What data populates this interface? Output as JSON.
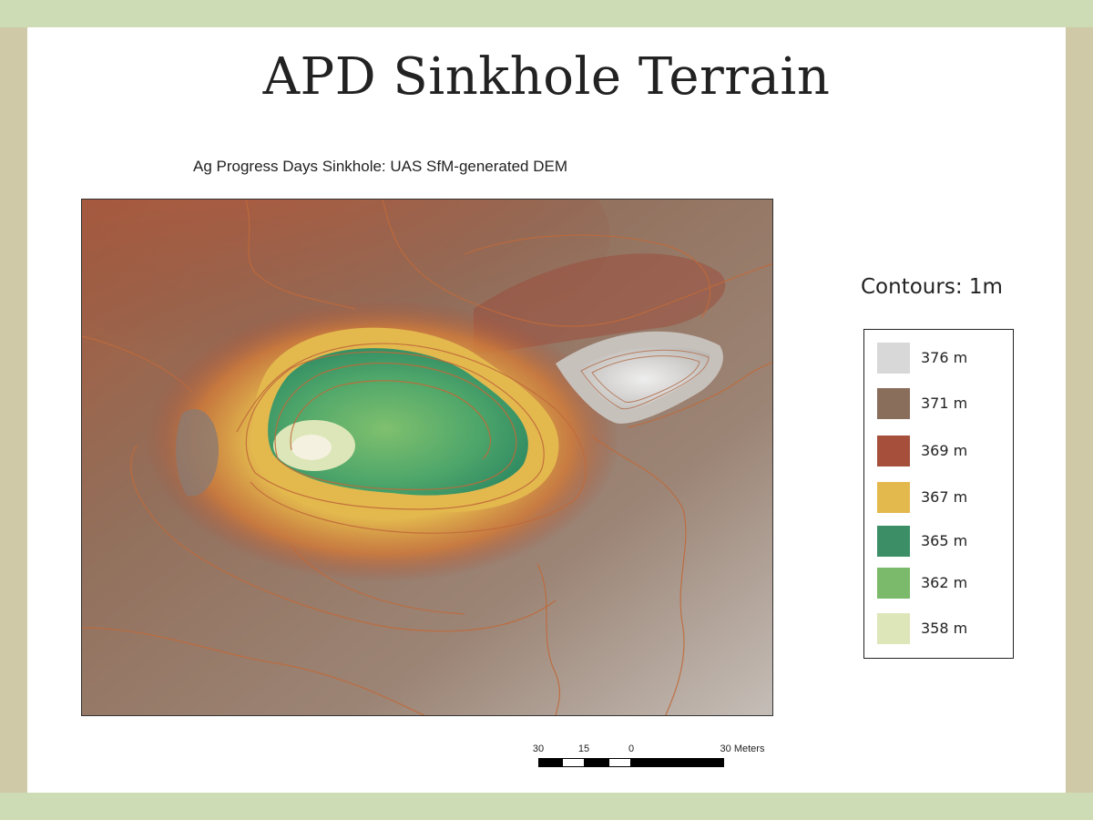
{
  "slide": {
    "title": "APD Sinkhole Terrain",
    "background_color": "#cddcb4",
    "side_color": "#cfc9a8"
  },
  "map": {
    "title": "Ag Progress Days Sinkhole: UAS SfM-generated DEM"
  },
  "legend": {
    "title": "Contours: 1m",
    "items": [
      {
        "label": "376 m",
        "color": "#d8d8d8"
      },
      {
        "label": "371 m",
        "color": "#8a6e5c"
      },
      {
        "label": "369 m",
        "color": "#a6503c"
      },
      {
        "label": "367 m",
        "color": "#e3b94e"
      },
      {
        "label": "365 m",
        "color": "#3b8e66"
      },
      {
        "label": "362 m",
        "color": "#7aba6a"
      },
      {
        "label": "358 m",
        "color": "#dde6b8"
      }
    ]
  },
  "scale_bar": {
    "labels": [
      "30",
      "15",
      "0",
      "30 Meters"
    ],
    "segments": [
      {
        "from": -30,
        "to": -22.5,
        "fill": "black"
      },
      {
        "from": -22.5,
        "to": -15,
        "fill": "white"
      },
      {
        "from": -15,
        "to": -7.5,
        "fill": "black"
      },
      {
        "from": -7.5,
        "to": 0,
        "fill": "white"
      },
      {
        "from": 0,
        "to": 30,
        "fill": "black"
      }
    ]
  }
}
